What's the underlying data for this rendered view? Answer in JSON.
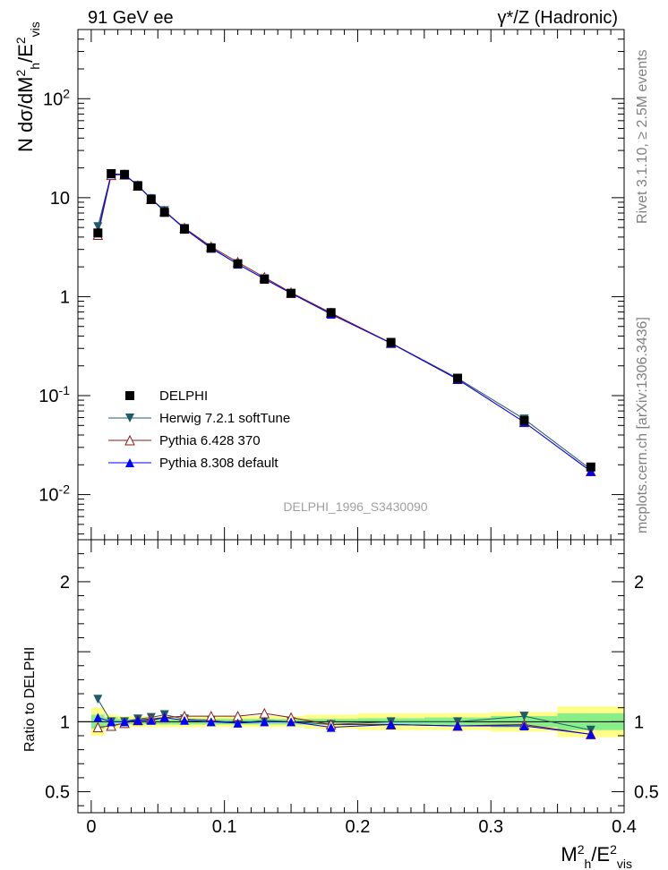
{
  "header": {
    "left": "91 GeV ee",
    "right": "γ*/Z (Hadronic)"
  },
  "side": {
    "rivet": "Rivet 3.1.10, ≥ 2.5M events",
    "mcplots": "mcplots.cern.ch [arXiv:1306.3436]"
  },
  "watermark": "DELPHI_1996_S3430090",
  "main_ylabel": "N dσ/dM_h^2/E_vis^2",
  "ratio_ylabel": "Ratio to DELPHI",
  "xlabel": "M_h^2/E_vis^2",
  "chart_data": [
    {
      "type": "scatter",
      "panel": "main",
      "ylog": true,
      "xlim": [
        -0.01,
        0.4
      ],
      "ylim": [
        0.0035,
        500
      ],
      "x_ticks": [
        "0",
        "0.1",
        "0.2",
        "0.3",
        "0.4"
      ],
      "y_ticks": [
        "10^-2",
        "10^-1",
        "1",
        "10",
        "10^2"
      ],
      "x": [
        0.005,
        0.015,
        0.025,
        0.035,
        0.045,
        0.055,
        0.07,
        0.09,
        0.11,
        0.13,
        0.15,
        0.18,
        0.225,
        0.275,
        0.325,
        0.375
      ],
      "series": [
        {
          "name": "DELPHI",
          "color": "#000000",
          "marker": "square",
          "values": [
            4.4,
            17.5,
            17.2,
            13.1,
            9.6,
            7.1,
            4.8,
            3.1,
            2.15,
            1.5,
            1.08,
            0.69,
            0.345,
            0.15,
            0.056,
            0.019
          ]
        },
        {
          "name": "Herwig 7.2.1 softTune",
          "color": "#1f5c6b",
          "marker": "triangle-down",
          "values": [
            5.1,
            17.4,
            17.1,
            13.3,
            9.8,
            7.4,
            4.9,
            3.12,
            2.13,
            1.52,
            1.08,
            0.68,
            0.34,
            0.15,
            0.058,
            0.018
          ]
        },
        {
          "name": "Pythia 6.428 370",
          "color": "#8b1a1a",
          "marker": "triangle-up-open",
          "values": [
            4.2,
            16.9,
            17.1,
            13.2,
            9.7,
            7.3,
            4.95,
            3.2,
            2.23,
            1.57,
            1.1,
            0.685,
            0.34,
            0.147,
            0.054,
            0.0172
          ]
        },
        {
          "name": "Pythia 8.308 default",
          "color": "#0000ff",
          "marker": "triangle-up",
          "values": [
            4.5,
            17.4,
            17.1,
            13.3,
            9.7,
            7.3,
            4.85,
            3.08,
            2.13,
            1.51,
            1.08,
            0.665,
            0.338,
            0.146,
            0.054,
            0.0172
          ]
        }
      ]
    },
    {
      "type": "line",
      "panel": "ratio",
      "xlim": [
        -0.01,
        0.4
      ],
      "ylim": [
        0.35,
        2.3
      ],
      "y_ticks": [
        "0.5",
        "1",
        "2"
      ],
      "x": [
        0.005,
        0.015,
        0.025,
        0.035,
        0.045,
        0.055,
        0.07,
        0.09,
        0.11,
        0.13,
        0.15,
        0.18,
        0.225,
        0.275,
        0.325,
        0.375
      ],
      "band_inner": [
        0.05,
        0.03,
        0.02,
        0.02,
        0.02,
        0.02,
        0.02,
        0.02,
        0.02,
        0.02,
        0.02,
        0.02,
        0.025,
        0.03,
        0.04,
        0.06
      ],
      "band_outer": [
        0.1,
        0.05,
        0.04,
        0.04,
        0.04,
        0.04,
        0.04,
        0.04,
        0.04,
        0.04,
        0.04,
        0.05,
        0.06,
        0.06,
        0.07,
        0.11
      ],
      "series": [
        {
          "name": "Herwig 7.2.1 softTune",
          "color": "#1f5c6b",
          "marker": "triangle-down",
          "values": [
            1.16,
            1.0,
            1.0,
            1.02,
            1.03,
            1.05,
            1.02,
            1.01,
            0.99,
            1.01,
            1.0,
            0.98,
            1.0,
            1.0,
            1.04,
            0.94
          ]
        },
        {
          "name": "Pythia 6.428 370",
          "color": "#8b1a1a",
          "marker": "triangle-up-open",
          "values": [
            0.96,
            0.97,
            0.99,
            1.01,
            1.02,
            1.03,
            1.04,
            1.04,
            1.04,
            1.06,
            1.03,
            0.98,
            0.98,
            0.97,
            0.98,
            0.91
          ]
        },
        {
          "name": "Pythia 8.308 default",
          "color": "#0000ff",
          "marker": "triangle-up",
          "values": [
            1.03,
            1.0,
            1.0,
            1.01,
            1.01,
            1.03,
            1.01,
            1.0,
            0.99,
            1.0,
            1.0,
            0.96,
            0.98,
            0.97,
            0.97,
            0.91
          ]
        }
      ]
    }
  ]
}
